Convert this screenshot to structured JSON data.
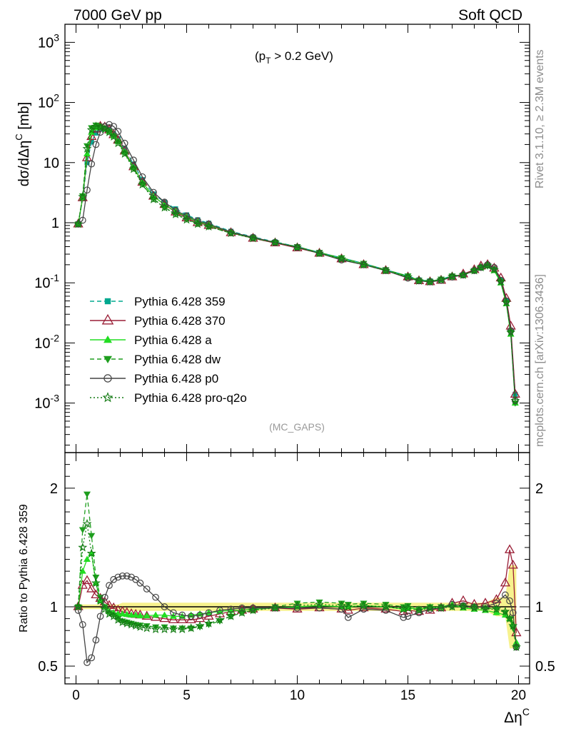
{
  "header": {
    "left": "7000 GeV pp",
    "right": "Soft QCD"
  },
  "annotation": "(p_T > 0.2 GeV)",
  "analysis_tag": "(MC_GAPS)",
  "side_text": {
    "rivet": "Rivet 3.1.10, ≥ 2.3M events",
    "source": "mcplots.cern.ch [arXiv:1306.3436]"
  },
  "legend": [
    {
      "label": "Pythia 6.428 359",
      "color": "#00a88f",
      "marker": "square",
      "dash": "dashed"
    },
    {
      "label": "Pythia 6.428 370",
      "color": "#9a1e36",
      "marker": "open-triangle",
      "dash": "solid"
    },
    {
      "label": "Pythia 6.428 a",
      "color": "#22dd22",
      "marker": "triangle",
      "dash": "solid"
    },
    {
      "label": "Pythia 6.428 dw",
      "color": "#1e9e1e",
      "marker": "inverted-triangle",
      "dash": "dashed"
    },
    {
      "label": "Pythia 6.428 p0",
      "color": "#444444",
      "marker": "open-circle",
      "dash": "solid"
    },
    {
      "label": "Pythia 6.428 pro-q2o",
      "color": "#127a12",
      "marker": "star",
      "dash": "dotted"
    }
  ],
  "chart_data": [
    {
      "type": "line",
      "panel": "main",
      "ylabel": "dσ/dΔη^C [mb]",
      "yscale": "log",
      "xlim": [
        -0.5,
        20.5
      ],
      "ylim": [
        0.00015,
        2000
      ],
      "yticks": [
        {
          "value": 0.001,
          "label": "10^-3"
        },
        {
          "value": 0.01,
          "label": "10^-2"
        },
        {
          "value": 0.1,
          "label": "10^-1"
        },
        {
          "value": 1,
          "label": "1"
        },
        {
          "value": 10,
          "label": "10"
        },
        {
          "value": 100,
          "label": "10^2"
        },
        {
          "value": 1000,
          "label": "10^3"
        }
      ],
      "legend_position": "lower-left",
      "x": [
        0.1,
        0.3,
        0.5,
        0.7,
        0.9,
        1.1,
        1.3,
        1.5,
        1.7,
        1.9,
        2.2,
        2.6,
        3,
        3.5,
        4,
        4.5,
        5,
        5.5,
        6,
        7,
        8,
        9,
        10,
        11,
        12,
        13,
        14,
        15,
        15.5,
        16,
        16.5,
        17,
        17.5,
        18,
        18.3,
        18.6,
        18.9,
        19.2,
        19.45,
        19.65,
        19.85
      ],
      "series": [
        {
          "name": "Pythia 6.428 359",
          "values": [
            0.95,
            2.5,
            10,
            22,
            31,
            36,
            37,
            35,
            30,
            25,
            17,
            9.5,
            5.2,
            3.0,
            2.2,
            1.7,
            1.35,
            1.12,
            0.98,
            0.72,
            0.58,
            0.48,
            0.4,
            0.32,
            0.26,
            0.21,
            0.165,
            0.13,
            0.112,
            0.108,
            0.115,
            0.13,
            0.135,
            0.16,
            0.18,
            0.195,
            0.17,
            0.11,
            0.05,
            0.016,
            0.0014
          ]
        },
        {
          "name": "Pythia 6.428 370",
          "values": [
            0.95,
            2.6,
            12,
            27,
            36,
            40,
            39,
            35,
            29,
            23.5,
            15.5,
            8.5,
            4.7,
            2.75,
            2.0,
            1.5,
            1.2,
            1.0,
            0.9,
            0.68,
            0.55,
            0.46,
            0.38,
            0.31,
            0.25,
            0.2,
            0.16,
            0.125,
            0.108,
            0.104,
            0.11,
            0.125,
            0.14,
            0.165,
            0.19,
            0.2,
            0.175,
            0.12,
            0.055,
            0.019,
            0.0014
          ]
        },
        {
          "name": "Pythia 6.428 a",
          "values": [
            0.95,
            2.6,
            14,
            32,
            38,
            38,
            37,
            33,
            28,
            22.5,
            15,
            8.3,
            4.7,
            2.75,
            2.0,
            1.55,
            1.25,
            1.04,
            0.92,
            0.7,
            0.56,
            0.47,
            0.39,
            0.31,
            0.25,
            0.2,
            0.16,
            0.125,
            0.11,
            0.106,
            0.112,
            0.126,
            0.135,
            0.16,
            0.18,
            0.195,
            0.16,
            0.1,
            0.045,
            0.014,
            0.001
          ]
        },
        {
          "name": "Pythia 6.428 dw",
          "values": [
            0.95,
            2.8,
            19,
            38,
            42,
            40,
            37,
            33,
            28,
            22,
            14.5,
            8.0,
            4.4,
            2.5,
            1.8,
            1.4,
            1.15,
            0.96,
            0.86,
            0.67,
            0.56,
            0.47,
            0.4,
            0.32,
            0.26,
            0.21,
            0.165,
            0.13,
            0.11,
            0.106,
            0.115,
            0.13,
            0.135,
            0.16,
            0.18,
            0.19,
            0.165,
            0.105,
            0.047,
            0.015,
            0.001
          ]
        },
        {
          "name": "Pythia 6.428 p0",
          "values": [
            0.95,
            1.1,
            3.5,
            9.5,
            20,
            32,
            40,
            43,
            40,
            33,
            21,
            11,
            5.8,
            3.2,
            2.2,
            1.6,
            1.3,
            1.08,
            0.95,
            0.7,
            0.57,
            0.47,
            0.39,
            0.31,
            0.24,
            0.2,
            0.16,
            0.12,
            0.108,
            0.104,
            0.11,
            0.125,
            0.135,
            0.16,
            0.18,
            0.2,
            0.18,
            0.11,
            0.05,
            0.016,
            0.0011
          ]
        },
        {
          "name": "Pythia 6.428 pro-q2o",
          "values": [
            0.95,
            2.7,
            17,
            35,
            40,
            39,
            36,
            32,
            27,
            21,
            14,
            7.8,
            4.3,
            2.45,
            1.78,
            1.38,
            1.12,
            0.95,
            0.86,
            0.67,
            0.55,
            0.47,
            0.39,
            0.31,
            0.25,
            0.2,
            0.16,
            0.125,
            0.108,
            0.104,
            0.112,
            0.128,
            0.135,
            0.16,
            0.18,
            0.195,
            0.165,
            0.105,
            0.047,
            0.015,
            0.0011
          ]
        }
      ]
    },
    {
      "type": "line",
      "panel": "ratio",
      "ylabel": "Ratio to Pythia 6.428 359",
      "xlabel": "Δη^C",
      "xlim": [
        -0.5,
        20.5
      ],
      "ylim": [
        0.35,
        2.3
      ],
      "xticks": [
        0,
        5,
        10,
        15,
        20
      ],
      "yticks": [
        0.5,
        1,
        2
      ],
      "reference_band": "yellow",
      "x": [
        0.1,
        0.3,
        0.5,
        0.7,
        0.9,
        1.1,
        1.3,
        1.5,
        1.7,
        1.9,
        2.1,
        2.3,
        2.5,
        2.7,
        2.9,
        3.2,
        3.6,
        4,
        4.4,
        4.8,
        5.2,
        5.6,
        6,
        6.5,
        7,
        7.5,
        8,
        9,
        10,
        11,
        12,
        12.3,
        13,
        14,
        14.8,
        15,
        15.5,
        16,
        16.5,
        17,
        17.5,
        18,
        18.5,
        19,
        19.4,
        19.6,
        19.75,
        19.9
      ],
      "series": [
        {
          "name": "Pythia 6.428 359",
          "values": [
            1,
            1,
            1,
            1,
            1,
            1,
            1,
            1,
            1,
            1,
            1,
            1,
            1,
            1,
            1,
            1,
            1,
            1,
            1,
            1,
            1,
            1,
            1,
            1,
            1,
            1,
            1,
            1,
            1,
            1,
            1,
            1,
            1,
            1,
            1,
            1,
            1,
            1,
            1,
            1,
            1,
            1,
            1,
            1,
            1,
            1,
            1,
            1
          ]
        },
        {
          "name": "Pythia 6.428 370",
          "values": [
            1.0,
            1.18,
            1.22,
            1.15,
            1.1,
            1.07,
            1.04,
            1.01,
            0.99,
            0.97,
            0.96,
            0.95,
            0.94,
            0.935,
            0.93,
            0.92,
            0.91,
            0.9,
            0.89,
            0.89,
            0.89,
            0.9,
            0.92,
            0.94,
            0.96,
            0.97,
            0.98,
            0.99,
            0.98,
            0.99,
            0.98,
            0.97,
            0.99,
            0.98,
            0.96,
            0.97,
            0.96,
            0.97,
            0.99,
            1.03,
            1.05,
            1.02,
            1.03,
            1.06,
            1.2,
            1.48,
            1.35,
            0.78
          ]
        },
        {
          "name": "Pythia 6.428 a",
          "values": [
            1.0,
            1.3,
            1.4,
            1.45,
            1.2,
            1.05,
            1.0,
            0.96,
            0.95,
            0.94,
            0.94,
            0.935,
            0.93,
            0.93,
            0.925,
            0.925,
            0.93,
            0.93,
            0.92,
            0.92,
            0.93,
            0.94,
            0.95,
            0.96,
            0.97,
            0.97,
            0.98,
            0.99,
            1.0,
            1.01,
            1.0,
            1.0,
            1.01,
            1.0,
            0.98,
            0.99,
            0.98,
            0.99,
            1.0,
            1.02,
            0.99,
            0.98,
            0.97,
            0.95,
            0.93,
            0.9,
            0.85,
            0.7
          ]
        },
        {
          "name": "Pythia 6.428 dw",
          "values": [
            1.0,
            1.65,
            1.95,
            1.6,
            1.25,
            1.08,
            1.0,
            0.95,
            0.93,
            0.9,
            0.88,
            0.87,
            0.86,
            0.85,
            0.845,
            0.84,
            0.83,
            0.83,
            0.82,
            0.82,
            0.82,
            0.83,
            0.85,
            0.88,
            0.92,
            0.95,
            0.97,
            1.0,
            1.03,
            1.04,
            1.03,
            1.02,
            1.03,
            1.02,
            1.0,
            1.01,
            0.98,
            1.0,
            1.0,
            1.0,
            1.01,
            1.0,
            0.99,
            0.98,
            0.95,
            0.9,
            0.82,
            0.66
          ]
        },
        {
          "name": "Pythia 6.428 p0",
          "values": [
            0.97,
            0.85,
            0.53,
            0.57,
            0.72,
            0.92,
            1.08,
            1.18,
            1.23,
            1.25,
            1.26,
            1.26,
            1.25,
            1.23,
            1.2,
            1.15,
            1.08,
            1.0,
            0.95,
            0.93,
            0.92,
            0.93,
            0.95,
            0.97,
            0.98,
            0.99,
            0.99,
            0.99,
            0.99,
            0.99,
            0.98,
            0.91,
            0.98,
            0.97,
            0.91,
            0.92,
            0.95,
            0.98,
            0.99,
            1.02,
            1.01,
            1.0,
            1.0,
            1.03,
            1.1,
            1.05,
            0.95,
            0.66
          ]
        },
        {
          "name": "Pythia 6.428 pro-q2o",
          "values": [
            1.0,
            1.5,
            1.7,
            1.45,
            1.2,
            1.05,
            0.98,
            0.94,
            0.92,
            0.89,
            0.87,
            0.86,
            0.85,
            0.84,
            0.83,
            0.82,
            0.81,
            0.81,
            0.81,
            0.81,
            0.82,
            0.84,
            0.86,
            0.89,
            0.92,
            0.95,
            0.97,
            0.99,
            1.01,
            1.02,
            1.01,
            1.0,
            1.01,
            1.0,
            0.98,
            0.99,
            0.97,
            0.99,
            0.99,
            1.0,
            1.0,
            0.99,
            0.98,
            0.98,
            0.96,
            0.9,
            0.84,
            0.66
          ]
        }
      ]
    }
  ]
}
